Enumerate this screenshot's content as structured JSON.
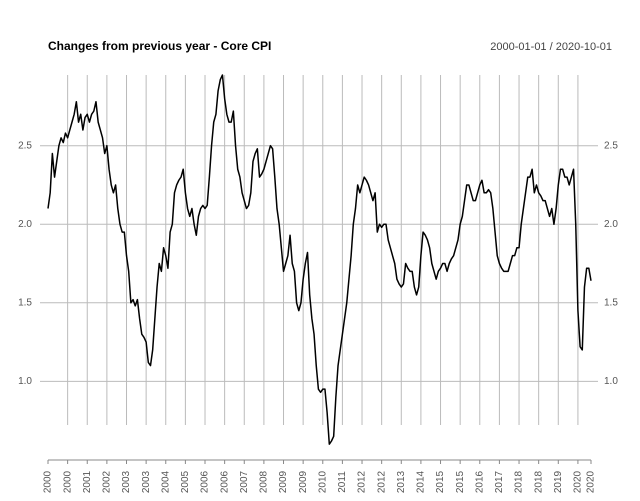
{
  "chart_data": {
    "type": "line",
    "title": "Changes from previous year - Core CPI",
    "subtitle": "2000-01-01 / 2020-10-01",
    "color": "#000000",
    "grid": true,
    "ylim": [
      0.55,
      2.95
    ],
    "yticks": [
      {
        "value": 1,
        "label": "1.0"
      },
      1.5,
      {
        "value": 2,
        "label": "2.0"
      },
      2.5
    ],
    "categories": [
      "2000",
      null,
      null,
      null,
      null,
      null,
      null,
      null,
      null,
      "2000",
      null,
      null,
      null,
      null,
      null,
      null,
      null,
      null,
      "2001",
      null,
      null,
      null,
      null,
      null,
      null,
      null,
      null,
      "2002",
      null,
      null,
      null,
      null,
      null,
      null,
      null,
      null,
      "2003",
      null,
      null,
      null,
      null,
      null,
      null,
      null,
      null,
      "2003",
      null,
      null,
      null,
      null,
      null,
      null,
      null,
      null,
      "2004",
      null,
      null,
      null,
      null,
      null,
      null,
      null,
      null,
      "2005",
      null,
      null,
      null,
      null,
      null,
      null,
      null,
      null,
      "2006",
      null,
      null,
      null,
      null,
      null,
      null,
      null,
      null,
      "2006",
      null,
      null,
      null,
      null,
      null,
      null,
      null,
      null,
      "2007",
      null,
      null,
      null,
      null,
      null,
      null,
      null,
      null,
      "2008",
      null,
      null,
      null,
      null,
      null,
      null,
      null,
      null,
      "2009",
      null,
      null,
      null,
      null,
      null,
      null,
      null,
      null,
      "2009",
      null,
      null,
      null,
      null,
      null,
      null,
      null,
      null,
      "2010",
      null,
      null,
      null,
      null,
      null,
      null,
      null,
      null,
      "2011",
      null,
      null,
      null,
      null,
      null,
      null,
      null,
      null,
      "2012",
      null,
      null,
      null,
      null,
      null,
      null,
      null,
      null,
      "2012",
      null,
      null,
      null,
      null,
      null,
      null,
      null,
      null,
      "2013",
      null,
      null,
      null,
      null,
      null,
      null,
      null,
      null,
      "2014",
      null,
      null,
      null,
      null,
      null,
      null,
      null,
      null,
      "2015",
      null,
      null,
      null,
      null,
      null,
      null,
      null,
      null,
      "2015",
      null,
      null,
      null,
      null,
      null,
      null,
      null,
      null,
      "2016",
      null,
      null,
      null,
      null,
      null,
      null,
      null,
      null,
      "2017",
      null,
      null,
      null,
      null,
      null,
      null,
      null,
      null,
      "2018",
      null,
      null,
      null,
      null,
      null,
      null,
      null,
      null,
      "2018",
      null,
      null,
      null,
      null,
      null,
      null,
      null,
      null,
      "2019",
      null,
      null,
      null,
      null,
      null,
      null,
      null,
      null,
      "2020",
      null,
      null,
      null,
      null,
      null,
      "2020"
    ],
    "values": [
      2.1,
      2.2,
      2.45,
      2.3,
      2.4,
      2.5,
      2.55,
      2.52,
      2.58,
      2.55,
      2.6,
      2.65,
      2.7,
      2.78,
      2.65,
      2.7,
      2.6,
      2.68,
      2.7,
      2.65,
      2.7,
      2.72,
      2.78,
      2.65,
      2.6,
      2.55,
      2.45,
      2.5,
      2.35,
      2.25,
      2.2,
      2.25,
      2.1,
      2.0,
      1.95,
      1.95,
      1.8,
      1.7,
      1.5,
      1.52,
      1.48,
      1.52,
      1.4,
      1.3,
      1.28,
      1.25,
      1.12,
      1.1,
      1.2,
      1.4,
      1.6,
      1.75,
      1.7,
      1.85,
      1.8,
      1.72,
      1.95,
      2.0,
      2.2,
      2.25,
      2.28,
      2.3,
      2.35,
      2.2,
      2.1,
      2.05,
      2.1,
      2.0,
      1.93,
      2.05,
      2.1,
      2.12,
      2.1,
      2.12,
      2.3,
      2.5,
      2.65,
      2.7,
      2.85,
      2.92,
      2.95,
      2.8,
      2.7,
      2.65,
      2.65,
      2.72,
      2.5,
      2.35,
      2.3,
      2.2,
      2.15,
      2.1,
      2.12,
      2.2,
      2.4,
      2.45,
      2.48,
      2.3,
      2.32,
      2.35,
      2.4,
      2.45,
      2.5,
      2.48,
      2.3,
      2.1,
      2.0,
      1.85,
      1.7,
      1.75,
      1.8,
      1.93,
      1.75,
      1.7,
      1.5,
      1.45,
      1.5,
      1.65,
      1.75,
      1.82,
      1.55,
      1.4,
      1.3,
      1.1,
      0.95,
      0.93,
      0.95,
      0.95,
      0.8,
      0.6,
      0.62,
      0.65,
      0.9,
      1.1,
      1.2,
      1.3,
      1.4,
      1.5,
      1.65,
      1.8,
      2.0,
      2.1,
      2.25,
      2.2,
      2.25,
      2.3,
      2.28,
      2.25,
      2.2,
      2.15,
      2.2,
      1.95,
      2.0,
      1.98,
      2.0,
      2.0,
      1.9,
      1.85,
      1.8,
      1.75,
      1.65,
      1.62,
      1.6,
      1.62,
      1.75,
      1.72,
      1.7,
      1.7,
      1.6,
      1.55,
      1.6,
      1.8,
      1.95,
      1.93,
      1.9,
      1.85,
      1.75,
      1.7,
      1.65,
      1.7,
      1.72,
      1.75,
      1.75,
      1.7,
      1.75,
      1.78,
      1.8,
      1.85,
      1.9,
      2.0,
      2.05,
      2.15,
      2.25,
      2.25,
      2.2,
      2.15,
      2.15,
      2.2,
      2.25,
      2.28,
      2.2,
      2.2,
      2.22,
      2.2,
      2.1,
      1.95,
      1.8,
      1.75,
      1.72,
      1.7,
      1.7,
      1.7,
      1.75,
      1.8,
      1.8,
      1.85,
      1.85,
      2.0,
      2.1,
      2.2,
      2.3,
      2.3,
      2.35,
      2.2,
      2.25,
      2.2,
      2.18,
      2.15,
      2.15,
      2.1,
      2.05,
      2.1,
      2.0,
      2.1,
      2.25,
      2.35,
      2.35,
      2.3,
      2.3,
      2.25,
      2.3,
      2.35,
      2.0,
      1.45,
      1.22,
      1.2,
      1.6,
      1.72,
      1.72,
      1.64
    ]
  }
}
